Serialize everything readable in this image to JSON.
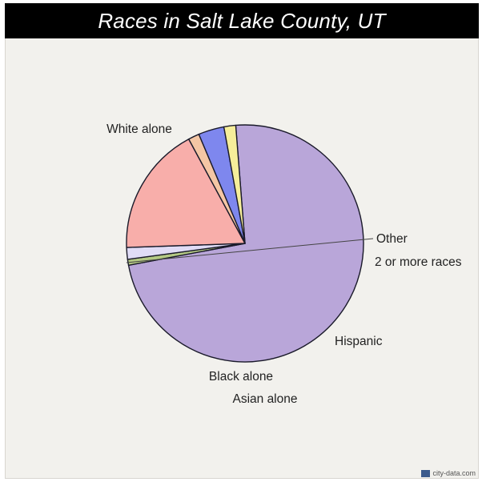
{
  "chart_data": {
    "type": "pie",
    "title": "Races in Salt Lake County, UT",
    "slices": [
      {
        "label": "White alone",
        "value": 73.0,
        "color": "#b9a6d9"
      },
      {
        "label": "Other",
        "value": 0.8,
        "color": "#b4c984"
      },
      {
        "label": "2 or more races",
        "value": 1.6,
        "color": "#e0dcf6"
      },
      {
        "label": "Hispanic",
        "value": 17.6,
        "color": "#f8aeaa"
      },
      {
        "label": "Asian alone",
        "value": 1.5,
        "color": "#f4c6a4"
      },
      {
        "label": "",
        "value": 3.5,
        "color": "#7e87ee"
      },
      {
        "label": "Black alone",
        "value": 1.6,
        "color": "#f6ee9a"
      }
    ]
  },
  "watermark": {
    "text": "city-data.com"
  }
}
